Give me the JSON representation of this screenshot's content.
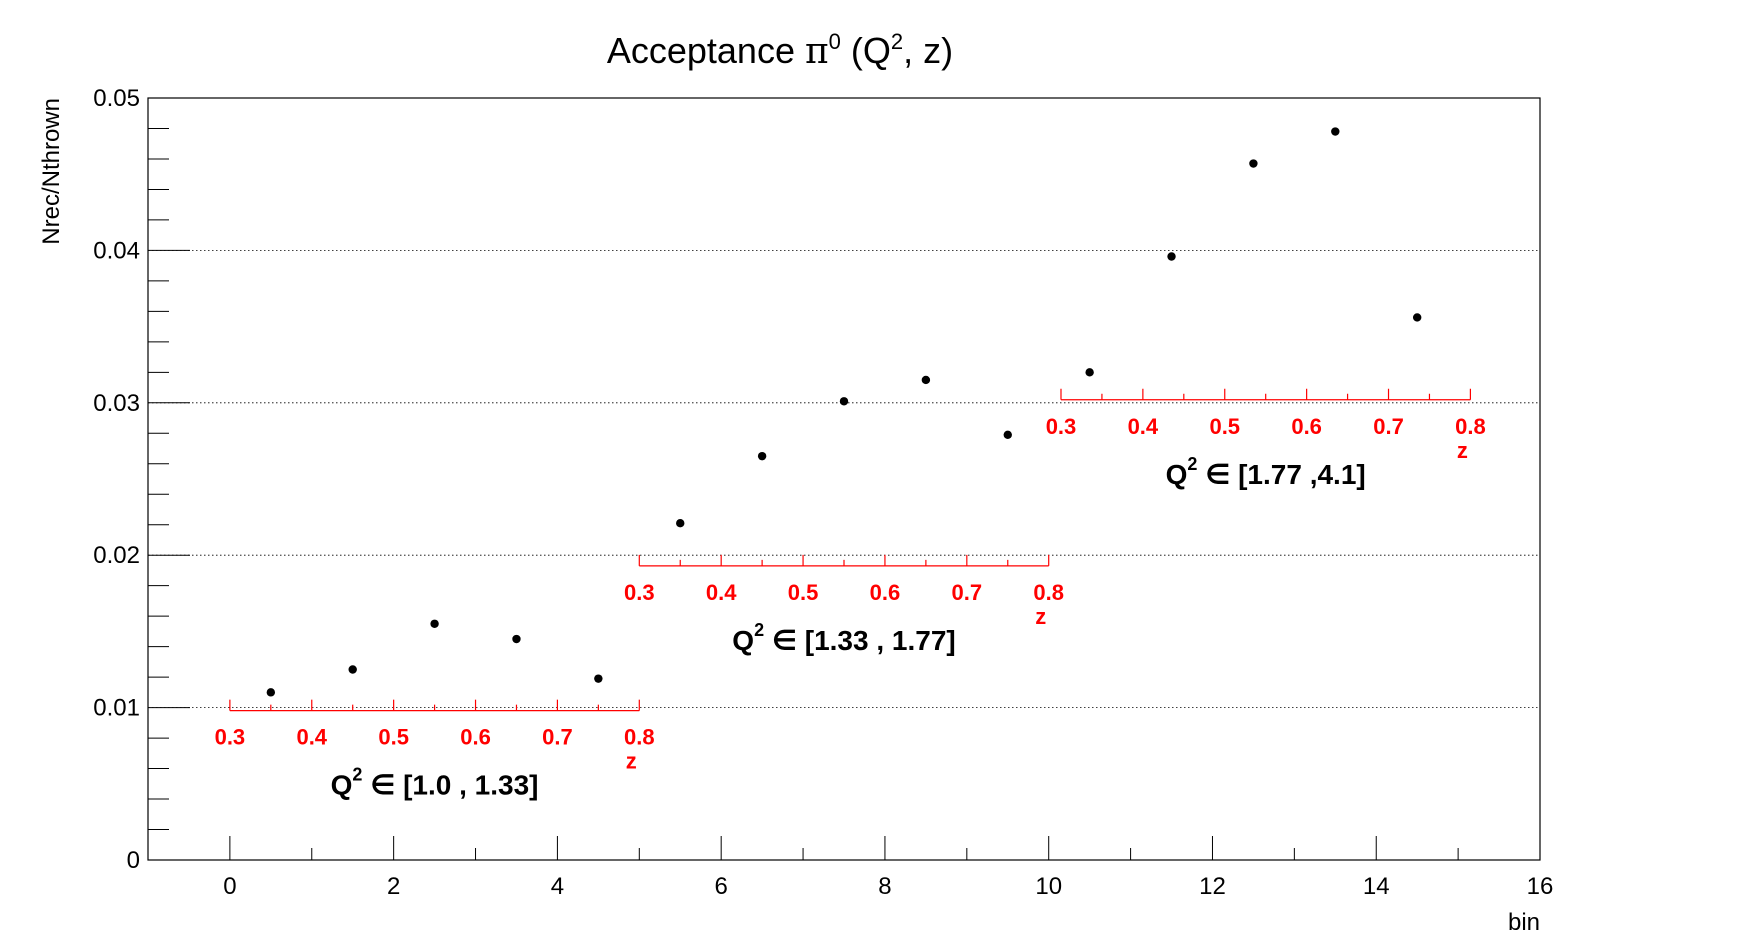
{
  "chart_data": {
    "type": "scatter",
    "title": {
      "prefix": "Acceptance ",
      "pi": "π",
      "pi_sup": "0",
      "mid": " (Q",
      "q_sup": "2",
      "suffix": ", z)"
    },
    "xlabel": "bin",
    "ylabel": "Nrec/Nthrown",
    "xlim": [
      -1,
      16
    ],
    "ylim": [
      0,
      0.05
    ],
    "x_ticks": [
      "0",
      "2",
      "4",
      "6",
      "8",
      "10",
      "12",
      "14",
      "16"
    ],
    "y_ticks": [
      "0",
      "0.01",
      "0.02",
      "0.03",
      "0.04",
      "0.05"
    ],
    "grid": "horizontal",
    "points": [
      {
        "x": 0.5,
        "y": 0.011
      },
      {
        "x": 1.5,
        "y": 0.0125
      },
      {
        "x": 2.5,
        "y": 0.0155
      },
      {
        "x": 3.5,
        "y": 0.0145
      },
      {
        "x": 4.5,
        "y": 0.0119
      },
      {
        "x": 5.5,
        "y": 0.0221
      },
      {
        "x": 6.5,
        "y": 0.0265
      },
      {
        "x": 7.5,
        "y": 0.0301
      },
      {
        "x": 8.5,
        "y": 0.0315
      },
      {
        "x": 9.5,
        "y": 0.0279
      },
      {
        "x": 10.5,
        "y": 0.032
      },
      {
        "x": 11.5,
        "y": 0.0396
      },
      {
        "x": 12.5,
        "y": 0.0457
      },
      {
        "x": 13.5,
        "y": 0.0478
      },
      {
        "x": 14.5,
        "y": 0.0356
      }
    ],
    "annotations": {
      "z_axis_color": "#ff0000",
      "z_title": "z",
      "z_ticks": [
        "0.3",
        "0.4",
        "0.5",
        "0.6",
        "0.7",
        "0.8"
      ],
      "groups": [
        {
          "x_start": 0,
          "x_end": 5,
          "y": 0.0098,
          "q2_label": {
            "q": "Q",
            "sup": "2",
            "range": " ∈ [1.0 , 1.33]"
          }
        },
        {
          "x_start": 5,
          "x_end": 10,
          "y": 0.0193,
          "q2_label": {
            "q": "Q",
            "sup": "2",
            "range": " ∈ [1.33 , 1.77]"
          }
        },
        {
          "x_start": 10.15,
          "x_end": 15.15,
          "y": 0.0302,
          "q2_label": {
            "q": "Q",
            "sup": "2",
            "range": " ∈ [1.77 ,4.1]"
          }
        }
      ]
    }
  }
}
